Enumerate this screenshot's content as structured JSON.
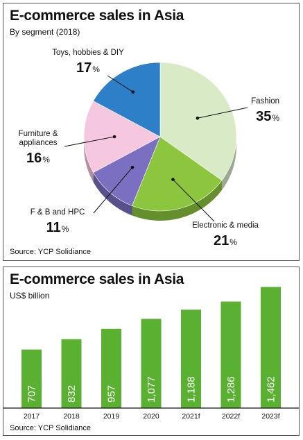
{
  "chart_data": [
    {
      "type": "pie",
      "title": "E-commerce sales in Asia",
      "subtitle": "By segment (2018)",
      "source": "Source: YCP Solidiance",
      "slices": [
        {
          "name": "Fashion",
          "value": 35,
          "color": "#d8eac6"
        },
        {
          "name": "Electronic & media",
          "value": 21,
          "color": "#8cc63e"
        },
        {
          "name": "F & B and HPC",
          "value": 11,
          "color": "#7a6fc0"
        },
        {
          "name": "Furniture & appliances",
          "value": 16,
          "color": "#f6c8e0"
        },
        {
          "name": "Toys, hobbies & DIY",
          "value": 17,
          "color": "#2d7fc8"
        }
      ],
      "label_lines": {
        "Furniture & appliances": [
          "Furniture &",
          "appliances"
        ]
      },
      "value_suffix": "%"
    },
    {
      "type": "bar",
      "title": "E-commerce sales in Asia",
      "subtitle": "US$ billion",
      "source": "Source: YCP Solidiance",
      "categories": [
        "2017",
        "2018",
        "2019",
        "2020",
        "2021f",
        "2022f",
        "2023f"
      ],
      "values": [
        707,
        832,
        957,
        1077,
        1188,
        1286,
        1462
      ],
      "value_labels": [
        "707",
        "832",
        "957",
        "1,077",
        "1,188",
        "1,286",
        "1,462"
      ],
      "ylim": [
        0,
        1500
      ],
      "bar_color": "#5ab031"
    }
  ]
}
